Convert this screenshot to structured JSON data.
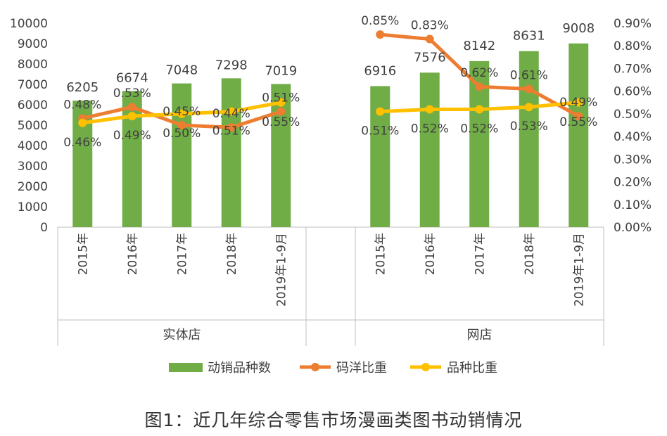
{
  "chart_data": {
    "type": "bar",
    "caption": "图1：近几年综合零售市场漫画类图书动销情况",
    "groups": [
      {
        "name": "实体店",
        "categories": [
          "2015年",
          "2016年",
          "2017年",
          "2018年",
          "2019年1-9月"
        ],
        "bar_values": [
          6205,
          6674,
          7048,
          7298,
          7019
        ],
        "orange_values": [
          0.48,
          0.53,
          0.45,
          0.44,
          0.51
        ],
        "orange_labels": [
          "0.48%",
          "0.53%",
          "0.45%",
          "0.44%",
          "0.51%"
        ],
        "yellow_values": [
          0.46,
          0.49,
          0.5,
          0.51,
          0.55
        ],
        "yellow_labels": [
          "0.46%",
          "0.49%",
          "0.50%",
          "0.51%",
          "0.55%"
        ]
      },
      {
        "name": "网店",
        "categories": [
          "2015年",
          "2016年",
          "2017年",
          "2018年",
          "2019年1-9月"
        ],
        "bar_values": [
          6916,
          7576,
          8142,
          8631,
          9008
        ],
        "orange_values": [
          0.85,
          0.83,
          0.62,
          0.61,
          0.49
        ],
        "orange_labels": [
          "0.85%",
          "0.83%",
          "0.62%",
          "0.61%",
          "0.49%"
        ],
        "yellow_values": [
          0.51,
          0.52,
          0.52,
          0.53,
          0.55
        ],
        "yellow_labels": [
          "0.51%",
          "0.52%",
          "0.52%",
          "0.53%",
          "0.55%"
        ]
      }
    ],
    "series": [
      {
        "name": "动销品种数",
        "type": "bar",
        "color": "#70AD47"
      },
      {
        "name": "码洋比重",
        "type": "line",
        "color": "#ED7D31"
      },
      {
        "name": "品种比重",
        "type": "line",
        "color": "#FFC000"
      }
    ],
    "y_left": {
      "min": 0,
      "max": 10000,
      "step": 1000,
      "ticks": [
        "0",
        "1000",
        "2000",
        "3000",
        "4000",
        "5000",
        "6000",
        "7000",
        "8000",
        "9000",
        "10000"
      ]
    },
    "y_right": {
      "min": 0,
      "max": 0.9,
      "step": 0.1,
      "ticks": [
        "0.00%",
        "0.10%",
        "0.20%",
        "0.30%",
        "0.40%",
        "0.50%",
        "0.60%",
        "0.70%",
        "0.80%",
        "0.90%"
      ]
    },
    "legend_position": "bottom",
    "grid": false
  }
}
